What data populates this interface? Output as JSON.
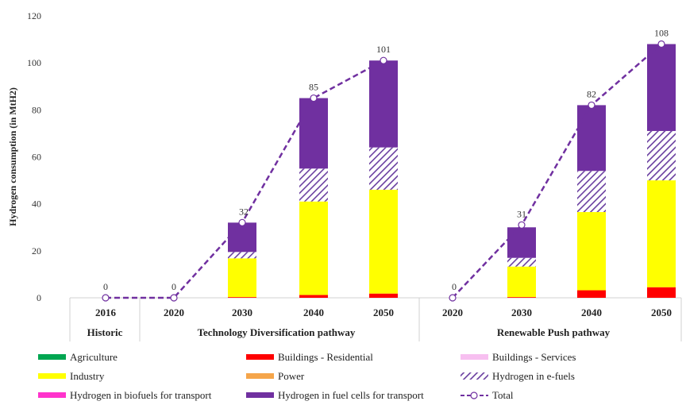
{
  "chart_data": {
    "type": "bar",
    "stacked": true,
    "title": "",
    "ylabel": "Hydrogen consumption (in MtH2)",
    "ylim": [
      0,
      120
    ],
    "yticks": [
      0,
      20,
      40,
      60,
      80,
      100,
      120
    ],
    "grid": false,
    "legend_position": "bottom",
    "categories": [
      "2016",
      "2020",
      "2030",
      "2040",
      "2050",
      "2020",
      "2030",
      "2040",
      "2050"
    ],
    "groups": [
      {
        "label": "Historic",
        "categories": [
          0
        ]
      },
      {
        "label": "Technology Diversification pathway",
        "categories": [
          1,
          2,
          3,
          4
        ]
      },
      {
        "label": "Renewable Push pathway",
        "categories": [
          5,
          6,
          7,
          8
        ]
      }
    ],
    "series": [
      {
        "name": "Agriculture",
        "color": "#00a651",
        "pattern": "solid",
        "values": [
          0,
          0,
          0,
          0,
          0,
          0,
          0,
          0,
          0
        ]
      },
      {
        "name": "Buildings - Residential",
        "color": "#ff0000",
        "pattern": "solid",
        "values": [
          0,
          0,
          0.3,
          1.2,
          1.8,
          0,
          0.3,
          3.2,
          4.5
        ]
      },
      {
        "name": "Buildings - Services",
        "color": "#f7bff0",
        "pattern": "solid",
        "values": [
          0,
          0,
          0,
          0,
          0,
          0,
          0,
          0,
          0
        ]
      },
      {
        "name": "Industry",
        "color": "#ffff00",
        "pattern": "solid",
        "values": [
          0,
          0,
          16.5,
          39.8,
          44.2,
          0,
          13.0,
          33.3,
          45.5
        ]
      },
      {
        "name": "Power",
        "color": "#f5a54a",
        "pattern": "solid",
        "values": [
          0,
          0,
          0,
          0,
          0,
          0,
          0,
          0,
          0
        ]
      },
      {
        "name": "Hydrogen in e-fuels",
        "color": "#6a3fa0",
        "pattern": "hatch",
        "values": [
          0,
          0,
          2.7,
          14.0,
          18.0,
          0,
          3.7,
          17.5,
          21.0
        ]
      },
      {
        "name": "Hydrogen in biofuels for transport",
        "color": "#ff33cc",
        "pattern": "solid",
        "values": [
          0,
          0,
          0,
          0,
          0,
          0,
          0,
          0,
          0
        ]
      },
      {
        "name": "Hydrogen in fuel cells for transport",
        "color": "#7030a0",
        "pattern": "solid",
        "values": [
          0,
          0,
          12.5,
          30.0,
          37.0,
          0,
          13.0,
          28.0,
          37.0
        ]
      }
    ],
    "total": {
      "name": "Total",
      "color": "#7030a0",
      "values": [
        0,
        0,
        32,
        85,
        101,
        0,
        31,
        82,
        108
      ],
      "labels": [
        "0",
        "0",
        "32",
        "85",
        "101",
        "0",
        "31",
        "82",
        "108"
      ]
    },
    "legend": [
      {
        "name": "Agriculture",
        "swatch": "bar",
        "color": "#00a651"
      },
      {
        "name": "Buildings - Residential",
        "swatch": "bar",
        "color": "#ff0000"
      },
      {
        "name": "Buildings - Services",
        "swatch": "bar",
        "color": "#f7bff0"
      },
      {
        "name": "Industry",
        "swatch": "bar",
        "color": "#ffff00"
      },
      {
        "name": "Power",
        "swatch": "bar",
        "color": "#f5a54a"
      },
      {
        "name": "Hydrogen in e-fuels",
        "swatch": "hatch",
        "color": "#6a3fa0"
      },
      {
        "name": "Hydrogen in biofuels for transport",
        "swatch": "bar",
        "color": "#ff33cc"
      },
      {
        "name": "Hydrogen in fuel cells for transport",
        "swatch": "bar",
        "color": "#7030a0"
      },
      {
        "name": "Total",
        "swatch": "line",
        "color": "#7030a0"
      }
    ]
  }
}
